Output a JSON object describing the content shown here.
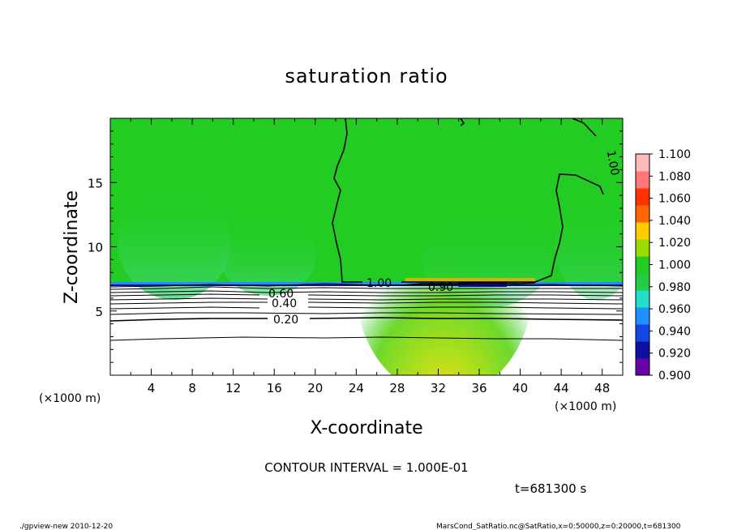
{
  "chart_data": {
    "type": "heatmap",
    "title": "saturation ratio",
    "xlabel": "X-coordinate",
    "ylabel": "Z-coordinate",
    "x_unit": "(×1000 m)",
    "y_unit": "(×1000 m)",
    "xlim": [
      0,
      50
    ],
    "ylim": [
      0,
      20
    ],
    "x_ticks": [
      4,
      8,
      12,
      16,
      20,
      24,
      28,
      32,
      36,
      40,
      44,
      48
    ],
    "y_ticks": [
      5,
      10,
      15
    ],
    "colorbar": {
      "levels": [
        0.9,
        0.92,
        0.94,
        0.96,
        0.98,
        1.0,
        1.02,
        1.04,
        1.06,
        1.08,
        1.1
      ],
      "labels": [
        "0.900",
        "0.920",
        "0.940",
        "0.960",
        "0.980",
        "1.000",
        "1.020",
        "1.040",
        "1.060",
        "1.080",
        "1.100"
      ],
      "colors": [
        "#6a00a8",
        "#1010a0",
        "#1446e6",
        "#1e90ff",
        "#22dccc",
        "#22cc44",
        "#22cc22",
        "#99dd00",
        "#ffcc00",
        "#ff6600",
        "#ff3300",
        "#ff7777",
        "#ffbbbb"
      ]
    },
    "contour_labels": [
      "1.00",
      "1.00",
      "0.90",
      "0.60",
      "0.40",
      "0.20"
    ],
    "contour_interval": "CONTOUR INTERVAL = 1.000E-01",
    "time": "t=681300 s"
  },
  "footer": {
    "left": "./gpview-new  2010-12-20",
    "right": "MarsCond_SatRatio.nc@SatRatio,x=0:50000,z=0:20000,t=681300"
  }
}
